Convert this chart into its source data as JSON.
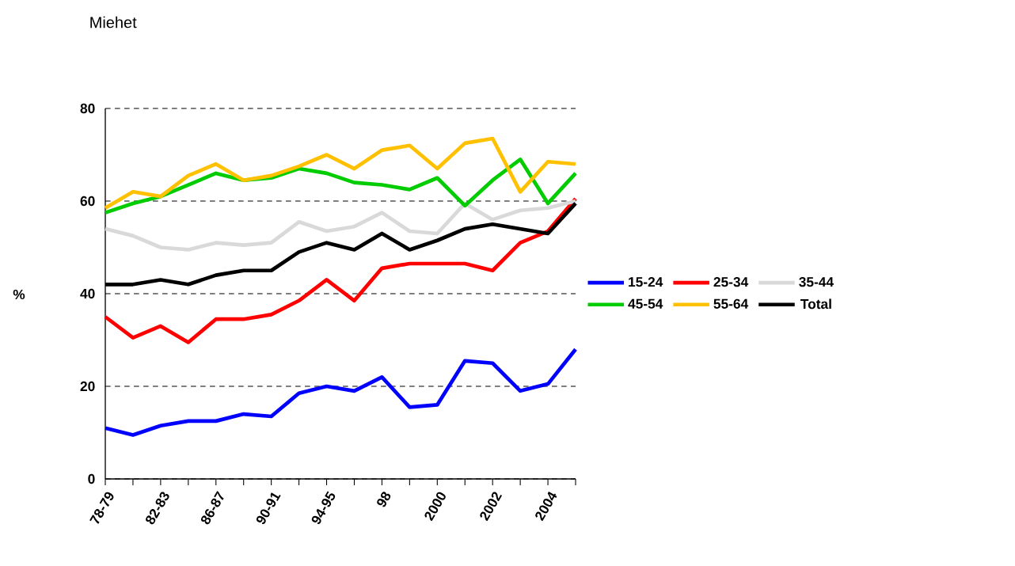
{
  "chart_data": {
    "type": "line",
    "title": "Miehet",
    "ylabel": "%",
    "categories": [
      "78-79",
      null,
      "82-83",
      null,
      "86-87",
      null,
      "90-91",
      null,
      "94-95",
      null,
      "98",
      null,
      "2000",
      null,
      "2002",
      null,
      "2004",
      null
    ],
    "series": [
      {
        "name": "15-24",
        "color": "#0000ff",
        "values": [
          11,
          9.5,
          11.5,
          12.5,
          12.5,
          14,
          13.5,
          18.5,
          20,
          19,
          22,
          15.5,
          16,
          25.5,
          25,
          19,
          20.5,
          28
        ]
      },
      {
        "name": "25-34",
        "color": "#ff0000",
        "values": [
          35,
          30.5,
          33,
          29.5,
          34.5,
          34.5,
          35.5,
          38.5,
          43,
          38.5,
          45.5,
          46.5,
          46.5,
          46.5,
          45,
          51,
          53.5,
          60.5
        ]
      },
      {
        "name": "35-44",
        "color": "#d9d9d9",
        "values": [
          54,
          52.5,
          50,
          49.5,
          51,
          50.5,
          51,
          55.5,
          53.5,
          54.5,
          57.5,
          53.5,
          53,
          59.5,
          56,
          58,
          58.5,
          60
        ]
      },
      {
        "name": "45-54",
        "color": "#00cc00",
        "values": [
          57.5,
          59.5,
          61,
          63.5,
          66,
          64.5,
          65,
          67,
          66,
          64,
          63.5,
          62.5,
          65,
          59,
          64.5,
          69,
          59.5,
          66
        ]
      },
      {
        "name": "55-64",
        "color": "#ffc000",
        "values": [
          58.5,
          62,
          61,
          65.5,
          68,
          64.5,
          65.5,
          67.5,
          70,
          67,
          71,
          72,
          67,
          72.5,
          73.5,
          62,
          68.5,
          68
        ]
      },
      {
        "name": "Total",
        "color": "#000000",
        "values": [
          42,
          42,
          43,
          42,
          44,
          45,
          45,
          49,
          51,
          49.5,
          53,
          49.5,
          51.5,
          54,
          55,
          54,
          53,
          59.5
        ]
      }
    ],
    "ylim": [
      0,
      80
    ],
    "yticks": [
      0,
      20,
      40,
      60,
      80
    ],
    "grid": "y",
    "legend": "right",
    "line_style": "solid",
    "marker": "none"
  }
}
